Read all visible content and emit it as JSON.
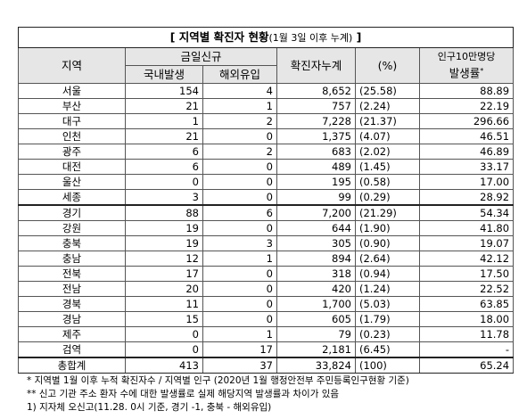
{
  "title": {
    "main": "[ 지역별 확진자 현황",
    "sub": "(1월 3일 이후 누계)",
    "close": " ]"
  },
  "header": {
    "region": "지역",
    "daily": "금일신규",
    "domestic": "국내발생",
    "overseas": "해외유입",
    "cumulative": "확진자누계",
    "percent": "(%)",
    "rate_line1": "인구10만명당",
    "rate_line2": "발생률",
    "rate_mark": "*"
  },
  "rows": [
    [
      "서울",
      "154",
      "4",
      "8,652",
      "(25.58)",
      "88.89"
    ],
    [
      "부산",
      "21",
      "1",
      "757",
      "(2.24)",
      "22.19"
    ],
    [
      "대구",
      "1",
      "2",
      "7,228",
      "(21.37)",
      "296.66"
    ],
    [
      "인천",
      "21",
      "0",
      "1,375",
      "(4.07)",
      "46.51"
    ],
    [
      "광주",
      "6",
      "2",
      "683",
      "(2.02)",
      "46.89"
    ],
    [
      "대전",
      "6",
      "0",
      "489",
      "(1.45)",
      "33.17"
    ],
    [
      "울산",
      "0",
      "0",
      "195",
      "(0.58)",
      "17.00"
    ],
    [
      "세종",
      "3",
      "0",
      "99",
      "(0.29)",
      "28.92"
    ],
    [
      "경기",
      "88",
      "6",
      "7,200",
      "(21.29)",
      "54.34"
    ],
    [
      "강원",
      "19",
      "0",
      "644",
      "(1.90)",
      "41.80"
    ],
    [
      "충북",
      "19",
      "3",
      "305",
      "(0.90)",
      "19.07"
    ],
    [
      "충남",
      "12",
      "1",
      "894",
      "(2.64)",
      "42.12"
    ],
    [
      "전북",
      "17",
      "0",
      "318",
      "(0.94)",
      "17.50"
    ],
    [
      "전남",
      "20",
      "0",
      "420",
      "(1.24)",
      "22.52"
    ],
    [
      "경북",
      "11",
      "0",
      "1,700",
      "(5.03)",
      "63.85"
    ],
    [
      "경남",
      "15",
      "0",
      "605",
      "(1.79)",
      "18.00"
    ],
    [
      "제주",
      "0",
      "1",
      "79",
      "(0.23)",
      "11.78"
    ],
    [
      "검역",
      "0",
      "17",
      "2,181",
      "(6.45)",
      "-"
    ],
    [
      "총합계",
      "413",
      "37",
      "33,824",
      "(100)",
      "65.24"
    ]
  ],
  "footnotes": [
    "* 지역별 1월 이후 누적 확진자수 / 지역별 인구 (2020년 1월 행정안전부 주민등록인구현황 기준)",
    "** 신고 기관 주소 환자 수에 대한 발생률로 실제 해당지역 발생률과 차이가 있음",
    "1) 지자체 오신고(11.28. 0시 기준, 경기 -1, 충북 - 해외유입)"
  ]
}
